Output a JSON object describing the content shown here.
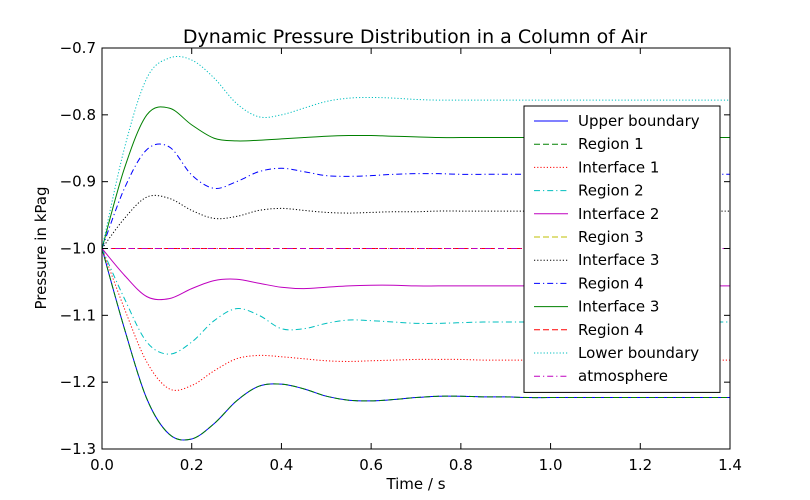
{
  "chart_data": {
    "type": "line",
    "title": "Dynamic Pressure Distribution in a Column of Air",
    "xlabel": "Time / s",
    "ylabel": "Pressure in kPag",
    "xlim": [
      0.0,
      1.4
    ],
    "ylim": [
      -1.3,
      -0.7
    ],
    "xticks": [
      "0.0",
      "0.2",
      "0.4",
      "0.6",
      "0.8",
      "1.0",
      "1.2",
      "1.4"
    ],
    "yticks": [
      "−1.3",
      "−1.2",
      "−1.1",
      "−1.0",
      "−0.9",
      "−0.8",
      "−0.7"
    ],
    "grid": false,
    "legend_position": "right",
    "x": [
      0.0,
      0.05,
      0.1,
      0.15,
      0.2,
      0.25,
      0.3,
      0.35,
      0.4,
      0.45,
      0.5,
      0.55,
      0.6,
      0.65,
      0.7,
      0.75,
      0.8,
      0.85,
      0.9,
      0.95,
      1.0,
      1.05,
      1.1,
      1.15,
      1.2,
      1.25,
      1.3,
      1.35,
      1.4
    ],
    "series": [
      {
        "name": "Upper boundary",
        "color": "#0000ff",
        "dash": "solid",
        "values": [
          -1.0,
          -1.12,
          -1.225,
          -1.278,
          -1.285,
          -1.262,
          -1.228,
          -1.206,
          -1.203,
          -1.21,
          -1.221,
          -1.227,
          -1.228,
          -1.226,
          -1.223,
          -1.221,
          -1.221,
          -1.222,
          -1.222,
          -1.223,
          -1.223,
          -1.223,
          -1.223,
          -1.223,
          -1.223,
          -1.223,
          -1.223,
          -1.223,
          -1.223
        ]
      },
      {
        "name": "Region 1",
        "color": "#008000",
        "dash": "dashed",
        "values": [
          -1.0,
          -1.12,
          -1.225,
          -1.278,
          -1.285,
          -1.262,
          -1.228,
          -1.206,
          -1.203,
          -1.21,
          -1.221,
          -1.227,
          -1.228,
          -1.226,
          -1.223,
          -1.221,
          -1.221,
          -1.222,
          -1.222,
          -1.223,
          -1.223,
          -1.223,
          -1.223,
          -1.223,
          -1.223,
          -1.223,
          -1.223,
          -1.223,
          -1.223
        ]
      },
      {
        "name": "Interface 1",
        "color": "#ff0000",
        "dash": "dotted",
        "values": [
          -1.0,
          -1.09,
          -1.17,
          -1.21,
          -1.205,
          -1.183,
          -1.165,
          -1.16,
          -1.162,
          -1.165,
          -1.168,
          -1.169,
          -1.168,
          -1.167,
          -1.166,
          -1.166,
          -1.166,
          -1.167,
          -1.167,
          -1.167,
          -1.167,
          -1.167,
          -1.167,
          -1.167,
          -1.167,
          -1.167,
          -1.167,
          -1.167,
          -1.167
        ]
      },
      {
        "name": "Region 2",
        "color": "#00bfbf",
        "dash": "dashdot",
        "values": [
          -1.0,
          -1.075,
          -1.14,
          -1.158,
          -1.14,
          -1.108,
          -1.09,
          -1.1,
          -1.12,
          -1.12,
          -1.112,
          -1.107,
          -1.108,
          -1.11,
          -1.112,
          -1.112,
          -1.111,
          -1.11,
          -1.11,
          -1.11,
          -1.11,
          -1.11,
          -1.11,
          -1.11,
          -1.11,
          -1.11,
          -1.11,
          -1.11,
          -1.11
        ]
      },
      {
        "name": "Interface 2",
        "color": "#bf00bf",
        "dash": "solid",
        "values": [
          -1.0,
          -1.04,
          -1.072,
          -1.075,
          -1.06,
          -1.048,
          -1.046,
          -1.052,
          -1.058,
          -1.06,
          -1.058,
          -1.056,
          -1.055,
          -1.055,
          -1.056,
          -1.056,
          -1.056,
          -1.056,
          -1.056,
          -1.056,
          -1.056,
          -1.056,
          -1.056,
          -1.056,
          -1.056,
          -1.056,
          -1.056,
          -1.056,
          -1.056
        ]
      },
      {
        "name": "Region 3",
        "color": "#bfbf00",
        "dash": "dashed",
        "values": [
          -1.0,
          -1.0,
          -1.0,
          -1.0,
          -1.0,
          -1.0,
          -1.0,
          -1.0,
          -1.0,
          -1.0,
          -1.0,
          -1.0,
          -1.0,
          -1.0,
          -1.0,
          -1.0,
          -1.0,
          -1.0,
          -1.0,
          -1.0,
          -1.0,
          -1.0,
          -1.0,
          -1.0,
          -1.0,
          -1.0,
          -1.0,
          -1.0,
          -1.0
        ]
      },
      {
        "name": "Interface 3",
        "color": "#000000",
        "dash": "dotted",
        "values": [
          -1.0,
          -0.955,
          -0.923,
          -0.925,
          -0.943,
          -0.955,
          -0.952,
          -0.943,
          -0.94,
          -0.943,
          -0.946,
          -0.947,
          -0.946,
          -0.945,
          -0.945,
          -0.944,
          -0.944,
          -0.944,
          -0.944,
          -0.944,
          -0.944,
          -0.944,
          -0.944,
          -0.944,
          -0.944,
          -0.944,
          -0.944,
          -0.944,
          -0.944
        ]
      },
      {
        "name": "Region 4",
        "color": "#0000ff",
        "dash": "dashdot",
        "values": [
          -1.0,
          -0.91,
          -0.852,
          -0.848,
          -0.89,
          -0.91,
          -0.9,
          -0.885,
          -0.88,
          -0.885,
          -0.891,
          -0.892,
          -0.891,
          -0.889,
          -0.888,
          -0.888,
          -0.889,
          -0.889,
          -0.889,
          -0.889,
          -0.889,
          -0.889,
          -0.889,
          -0.889,
          -0.889,
          -0.889,
          -0.889,
          -0.889,
          -0.889
        ]
      },
      {
        "name": "Interface 3",
        "color": "#008000",
        "dash": "solid",
        "values": [
          -1.0,
          -0.88,
          -0.8,
          -0.79,
          -0.815,
          -0.835,
          -0.839,
          -0.838,
          -0.836,
          -0.834,
          -0.832,
          -0.831,
          -0.831,
          -0.832,
          -0.833,
          -0.834,
          -0.834,
          -0.834,
          -0.834,
          -0.834,
          -0.834,
          -0.834,
          -0.834,
          -0.834,
          -0.834,
          -0.834,
          -0.834,
          -0.834,
          -0.834
        ]
      },
      {
        "name": "Region 4",
        "color": "#ff0000",
        "dash": "dashed",
        "values": [
          -1.0,
          -1.0,
          -1.0,
          -1.0,
          -1.0,
          -1.0,
          -1.0,
          -1.0,
          -1.0,
          -1.0,
          -1.0,
          -1.0,
          -1.0,
          -1.0,
          -1.0,
          -1.0,
          -1.0,
          -1.0,
          -1.0,
          -1.0,
          -1.0,
          -1.0,
          -1.0,
          -1.0,
          -1.0,
          -1.0,
          -1.0,
          -1.0,
          -1.0
        ]
      },
      {
        "name": "Lower boundary",
        "color": "#00bfbf",
        "dash": "dotted",
        "values": [
          -1.0,
          -0.85,
          -0.745,
          -0.715,
          -0.718,
          -0.745,
          -0.783,
          -0.803,
          -0.8,
          -0.79,
          -0.78,
          -0.775,
          -0.774,
          -0.775,
          -0.777,
          -0.778,
          -0.778,
          -0.778,
          -0.778,
          -0.778,
          -0.778,
          -0.778,
          -0.778,
          -0.778,
          -0.778,
          -0.778,
          -0.778,
          -0.778,
          -0.778
        ]
      },
      {
        "name": "atmosphere",
        "color": "#bf00bf",
        "dash": "dashdot",
        "values": [
          -1.0,
          -1.0,
          -1.0,
          -1.0,
          -1.0,
          -1.0,
          -1.0,
          -1.0,
          -1.0,
          -1.0,
          -1.0,
          -1.0,
          -1.0,
          -1.0,
          -1.0,
          -1.0,
          -1.0,
          -1.0,
          -1.0,
          -1.0,
          -1.0,
          -1.0,
          -1.0,
          -1.0,
          -1.0,
          -1.0,
          -1.0,
          -1.0,
          -1.0
        ]
      }
    ]
  }
}
